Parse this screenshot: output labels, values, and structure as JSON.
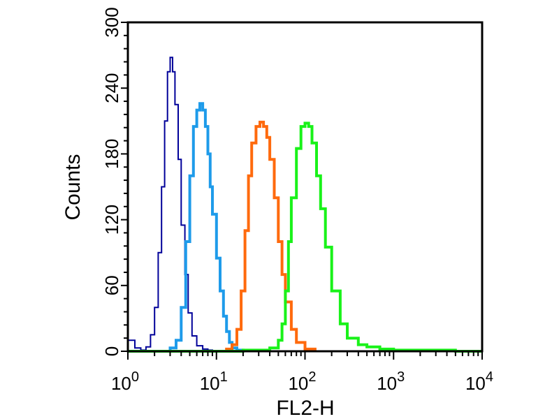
{
  "chart_data": {
    "type": "line",
    "title": "",
    "xlabel": "FL2-H",
    "ylabel": "Counts",
    "x_scale": "log",
    "xlim": [
      1,
      10000
    ],
    "ylim": [
      0,
      300
    ],
    "grid": false,
    "legend": "none",
    "x_ticks": [
      {
        "value": 1,
        "base": "10",
        "exp": "0"
      },
      {
        "value": 10,
        "base": "10",
        "exp": "1"
      },
      {
        "value": 100,
        "base": "10",
        "exp": "2"
      },
      {
        "value": 1000,
        "base": "10",
        "exp": "3"
      },
      {
        "value": 10000,
        "base": "10",
        "exp": "4"
      }
    ],
    "y_ticks": [
      0,
      60,
      120,
      180,
      240,
      300
    ],
    "series": [
      {
        "color": "#000099",
        "stroke": 2,
        "x": [
          1.0,
          1.2,
          1.4,
          1.6,
          1.8,
          2.0,
          2.2,
          2.4,
          2.6,
          2.8,
          3.0,
          3.2,
          3.4,
          3.7,
          4.0,
          4.4,
          4.8,
          5.3,
          6.0,
          7.0,
          8.0,
          9.0,
          10.0
        ],
        "y": [
          10,
          3,
          1,
          4,
          15,
          40,
          90,
          150,
          210,
          255,
          268,
          255,
          225,
          175,
          115,
          70,
          35,
          14,
          5,
          2,
          1,
          0,
          0
        ]
      },
      {
        "color": "#1E9BEA",
        "stroke": 4,
        "x": [
          2.5,
          3.0,
          3.5,
          4.0,
          4.5,
          5.0,
          5.5,
          6.0,
          6.5,
          7.0,
          7.5,
          8.0,
          8.5,
          9.0,
          10.0,
          11.0,
          12.0,
          13.0,
          14.0,
          15.0,
          17.0,
          20.0
        ],
        "y": [
          0,
          3,
          10,
          40,
          100,
          160,
          205,
          220,
          226,
          220,
          205,
          180,
          150,
          125,
          85,
          55,
          32,
          18,
          8,
          3,
          1,
          0
        ]
      },
      {
        "color": "#FF6A0D",
        "stroke": 4,
        "x": [
          6.0,
          10.0,
          13.0,
          15.0,
          17.0,
          19.0,
          21.0,
          23.0,
          25.0,
          28.0,
          31.0,
          34.0,
          37.0,
          40.0,
          45.0,
          50.0,
          55.0,
          60.0,
          70.0,
          80.0,
          100.0,
          130.0
        ],
        "y": [
          0,
          0,
          2,
          6,
          20,
          55,
          110,
          160,
          190,
          205,
          209,
          205,
          195,
          175,
          140,
          100,
          70,
          45,
          20,
          8,
          2,
          0
        ]
      },
      {
        "color": "#19F219",
        "stroke": 4,
        "x": [
          1.0,
          10.0,
          20.0,
          40.0,
          50.0,
          55.0,
          60.0,
          65.0,
          70.0,
          80.0,
          90.0,
          100.0,
          110.0,
          120.0,
          135.0,
          150.0,
          170.0,
          200.0,
          250.0,
          300.0,
          400.0,
          500.0,
          700.0,
          1000.0,
          2000.0,
          5000.0,
          10000.0
        ],
        "y": [
          0,
          0,
          1,
          3,
          10,
          25,
          55,
          100,
          140,
          185,
          205,
          208,
          205,
          190,
          160,
          130,
          95,
          55,
          25,
          12,
          6,
          4,
          2,
          1,
          1,
          0,
          0
        ]
      }
    ]
  }
}
